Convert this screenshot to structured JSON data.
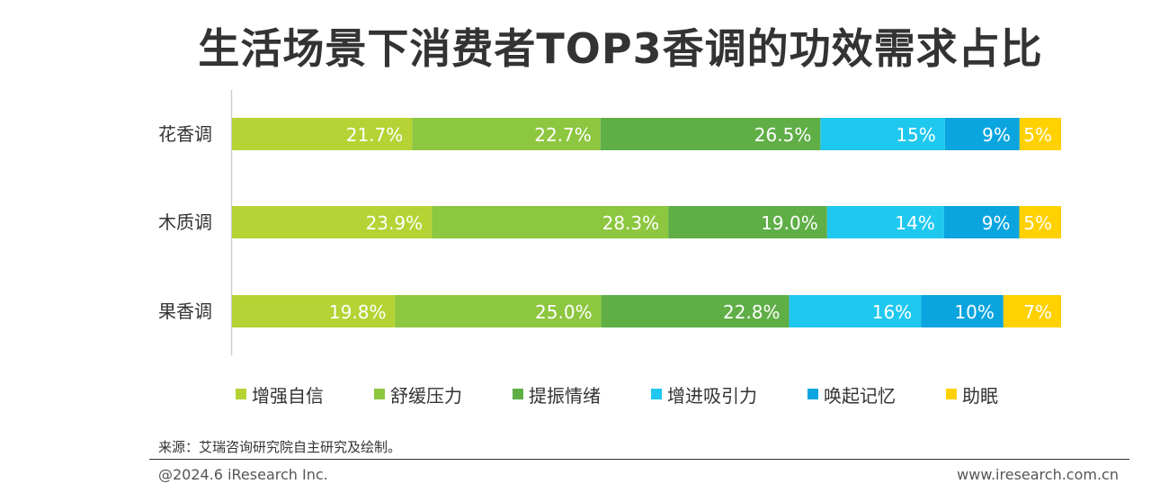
{
  "chart_data": {
    "type": "bar",
    "orientation": "horizontal",
    "stacked": true,
    "title": "生活场景下消费者TOP3香调的功效需求占比",
    "categories": [
      "花香调",
      "木质调",
      "果香调"
    ],
    "series": [
      {
        "name": "增强自信",
        "color": "#B5D334",
        "values": [
          21.7,
          23.9,
          19.8
        ],
        "labels": [
          "21.7%",
          "23.9%",
          "19.8%"
        ]
      },
      {
        "name": "舒缓压力",
        "color": "#8DC63F",
        "values": [
          22.7,
          28.3,
          25.0
        ],
        "labels": [
          "22.7%",
          "28.3%",
          "25.0%"
        ]
      },
      {
        "name": "提振情绪",
        "color": "#5FAE46",
        "values": [
          26.5,
          19.0,
          22.8
        ],
        "labels": [
          "26.5%",
          "19.0%",
          "22.8%"
        ]
      },
      {
        "name": "增进吸引力",
        "color": "#1FC8EE",
        "values": [
          15,
          14,
          16
        ],
        "labels": [
          "15%",
          "14%",
          "16%"
        ]
      },
      {
        "name": "唤起记忆",
        "color": "#0AA5DF",
        "values": [
          9,
          9,
          10
        ],
        "labels": [
          "9%",
          "9%",
          "10%"
        ]
      },
      {
        "name": "助眠",
        "color": "#FFD100",
        "values": [
          5,
          5,
          7
        ],
        "labels": [
          "5%",
          "5%",
          "7%"
        ]
      }
    ],
    "xlim": [
      0,
      100
    ],
    "grid": false,
    "legend": "bottom"
  },
  "footer": {
    "source": "来源：艾瑞咨询研究院自主研究及绘制。",
    "copyright": "@2024.6 iResearch Inc.",
    "website": "www.iresearch.com.cn"
  }
}
